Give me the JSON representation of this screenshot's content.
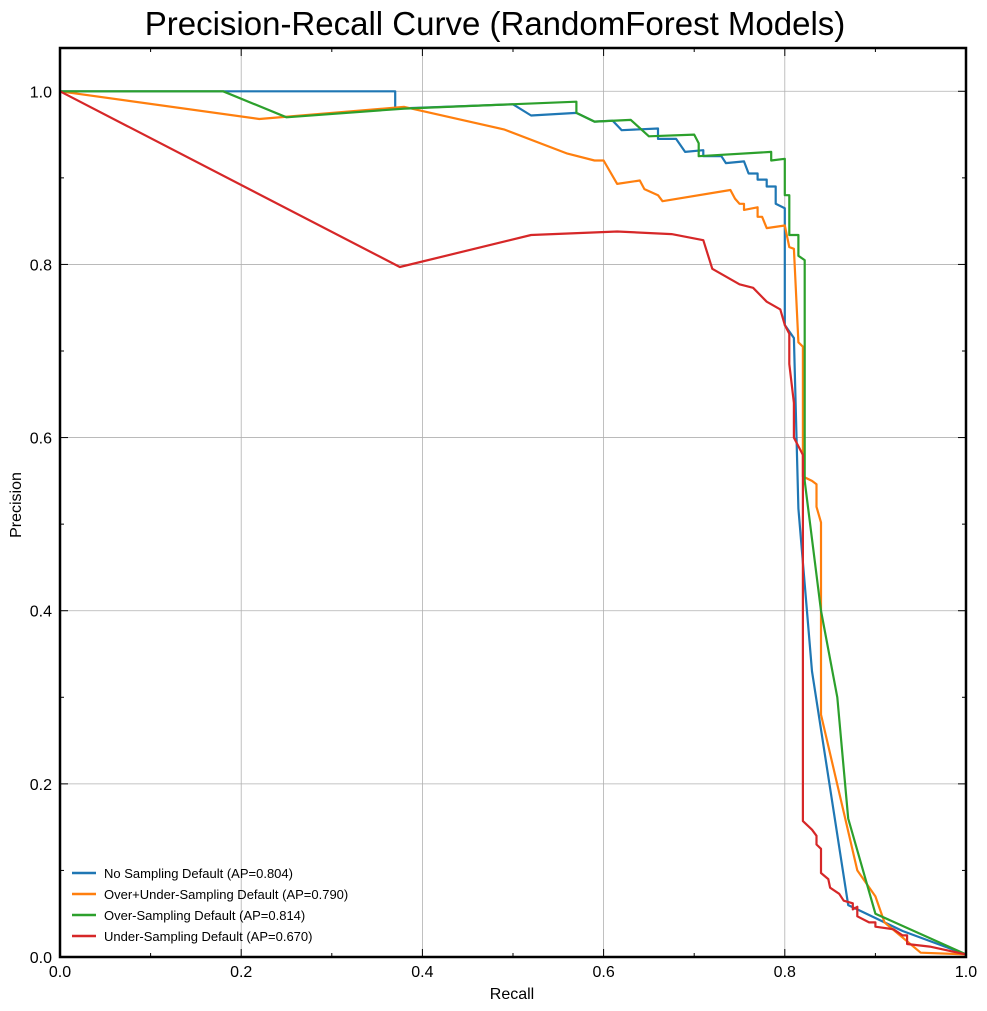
{
  "chart_data": {
    "type": "line",
    "title": "Precision-Recall Curve (RandomForest Models)",
    "xlabel": "Recall",
    "ylabel": "Precision",
    "xlim": [
      0,
      1
    ],
    "ylim": [
      0,
      1.05
    ],
    "xticks": [
      0.0,
      0.2,
      0.4,
      0.6,
      0.8,
      1.0
    ],
    "yticks": [
      0.0,
      0.2,
      0.4,
      0.6,
      0.8,
      1.0
    ],
    "xtick_labels": [
      "0.0",
      "0.2",
      "0.4",
      "0.6",
      "0.8",
      "1.0"
    ],
    "ytick_labels": [
      "0.0",
      "0.2",
      "0.4",
      "0.6",
      "0.8",
      "1.0"
    ],
    "grid": true,
    "legend_position": "lower-left",
    "series": [
      {
        "name": "No Sampling Default (AP=0.804)",
        "color": "#1f77b4",
        "points": [
          [
            0,
            1
          ],
          [
            0.37,
            1
          ],
          [
            0.37,
            0.98
          ],
          [
            0.5,
            0.985
          ],
          [
            0.52,
            0.972
          ],
          [
            0.57,
            0.975
          ],
          [
            0.59,
            0.965
          ],
          [
            0.61,
            0.966
          ],
          [
            0.62,
            0.955
          ],
          [
            0.66,
            0.957
          ],
          [
            0.66,
            0.945
          ],
          [
            0.68,
            0.945
          ],
          [
            0.69,
            0.93
          ],
          [
            0.71,
            0.932
          ],
          [
            0.71,
            0.925
          ],
          [
            0.73,
            0.925
          ],
          [
            0.735,
            0.917
          ],
          [
            0.755,
            0.919
          ],
          [
            0.76,
            0.905
          ],
          [
            0.77,
            0.905
          ],
          [
            0.77,
            0.898
          ],
          [
            0.78,
            0.898
          ],
          [
            0.78,
            0.89
          ],
          [
            0.79,
            0.89
          ],
          [
            0.79,
            0.87
          ],
          [
            0.8,
            0.865
          ],
          [
            0.8,
            0.73
          ],
          [
            0.81,
            0.715
          ],
          [
            0.815,
            0.518
          ],
          [
            0.83,
            0.33
          ],
          [
            0.87,
            0.06
          ],
          [
            0.88,
            0.055
          ],
          [
            0.93,
            0.03
          ],
          [
            1,
            0.003
          ]
        ]
      },
      {
        "name": "Over+Under-Sampling Default (AP=0.790)",
        "color": "#ff7f0e",
        "points": [
          [
            0,
            1
          ],
          [
            0.22,
            0.968
          ],
          [
            0.38,
            0.982
          ],
          [
            0.49,
            0.956
          ],
          [
            0.56,
            0.928
          ],
          [
            0.59,
            0.92
          ],
          [
            0.6,
            0.92
          ],
          [
            0.615,
            0.893
          ],
          [
            0.64,
            0.897
          ],
          [
            0.645,
            0.887
          ],
          [
            0.66,
            0.88
          ],
          [
            0.665,
            0.873
          ],
          [
            0.74,
            0.886
          ],
          [
            0.745,
            0.876
          ],
          [
            0.75,
            0.87
          ],
          [
            0.755,
            0.87
          ],
          [
            0.755,
            0.863
          ],
          [
            0.77,
            0.866
          ],
          [
            0.77,
            0.855
          ],
          [
            0.775,
            0.855
          ],
          [
            0.78,
            0.842
          ],
          [
            0.8,
            0.845
          ],
          [
            0.805,
            0.82
          ],
          [
            0.81,
            0.818
          ],
          [
            0.815,
            0.71
          ],
          [
            0.82,
            0.705
          ],
          [
            0.82,
            0.555
          ],
          [
            0.83,
            0.55
          ],
          [
            0.835,
            0.546
          ],
          [
            0.835,
            0.52
          ],
          [
            0.84,
            0.502
          ],
          [
            0.84,
            0.28
          ],
          [
            0.88,
            0.1
          ],
          [
            0.9,
            0.07
          ],
          [
            0.91,
            0.04
          ],
          [
            0.95,
            0.005
          ],
          [
            1,
            0.003
          ]
        ]
      },
      {
        "name": "Over-Sampling Default (AP=0.814)",
        "color": "#2ca02c",
        "points": [
          [
            0,
            1
          ],
          [
            0.18,
            1
          ],
          [
            0.25,
            0.97
          ],
          [
            0.38,
            0.98
          ],
          [
            0.57,
            0.988
          ],
          [
            0.57,
            0.975
          ],
          [
            0.59,
            0.965
          ],
          [
            0.63,
            0.967
          ],
          [
            0.65,
            0.948
          ],
          [
            0.7,
            0.95
          ],
          [
            0.705,
            0.94
          ],
          [
            0.705,
            0.925
          ],
          [
            0.785,
            0.93
          ],
          [
            0.785,
            0.92
          ],
          [
            0.8,
            0.922
          ],
          [
            0.8,
            0.88
          ],
          [
            0.805,
            0.88
          ],
          [
            0.805,
            0.834
          ],
          [
            0.815,
            0.834
          ],
          [
            0.815,
            0.81
          ],
          [
            0.822,
            0.805
          ],
          [
            0.822,
            0.55
          ],
          [
            0.84,
            0.4
          ],
          [
            0.858,
            0.3
          ],
          [
            0.87,
            0.16
          ],
          [
            0.9,
            0.05
          ],
          [
            1,
            0.003
          ]
        ]
      },
      {
        "name": "Under-Sampling Default (AP=0.670)",
        "color": "#d62728",
        "points": [
          [
            0,
            1
          ],
          [
            0.375,
            0.797
          ],
          [
            0.52,
            0.834
          ],
          [
            0.615,
            0.838
          ],
          [
            0.675,
            0.835
          ],
          [
            0.71,
            0.828
          ],
          [
            0.72,
            0.795
          ],
          [
            0.75,
            0.777
          ],
          [
            0.765,
            0.773
          ],
          [
            0.78,
            0.757
          ],
          [
            0.795,
            0.748
          ],
          [
            0.8,
            0.73
          ],
          [
            0.805,
            0.72
          ],
          [
            0.805,
            0.685
          ],
          [
            0.81,
            0.64
          ],
          [
            0.81,
            0.6
          ],
          [
            0.82,
            0.58
          ],
          [
            0.82,
            0.157
          ],
          [
            0.83,
            0.147
          ],
          [
            0.835,
            0.14
          ],
          [
            0.835,
            0.13
          ],
          [
            0.84,
            0.125
          ],
          [
            0.84,
            0.097
          ],
          [
            0.848,
            0.09
          ],
          [
            0.85,
            0.08
          ],
          [
            0.86,
            0.073
          ],
          [
            0.865,
            0.065
          ],
          [
            0.875,
            0.062
          ],
          [
            0.875,
            0.055
          ],
          [
            0.88,
            0.058
          ],
          [
            0.88,
            0.047
          ],
          [
            0.893,
            0.04
          ],
          [
            0.9,
            0.04
          ],
          [
            0.9,
            0.035
          ],
          [
            0.92,
            0.032
          ],
          [
            0.93,
            0.025
          ],
          [
            0.935,
            0.025
          ],
          [
            0.935,
            0.015
          ],
          [
            0.96,
            0.012
          ],
          [
            1,
            0.003
          ]
        ]
      }
    ]
  }
}
